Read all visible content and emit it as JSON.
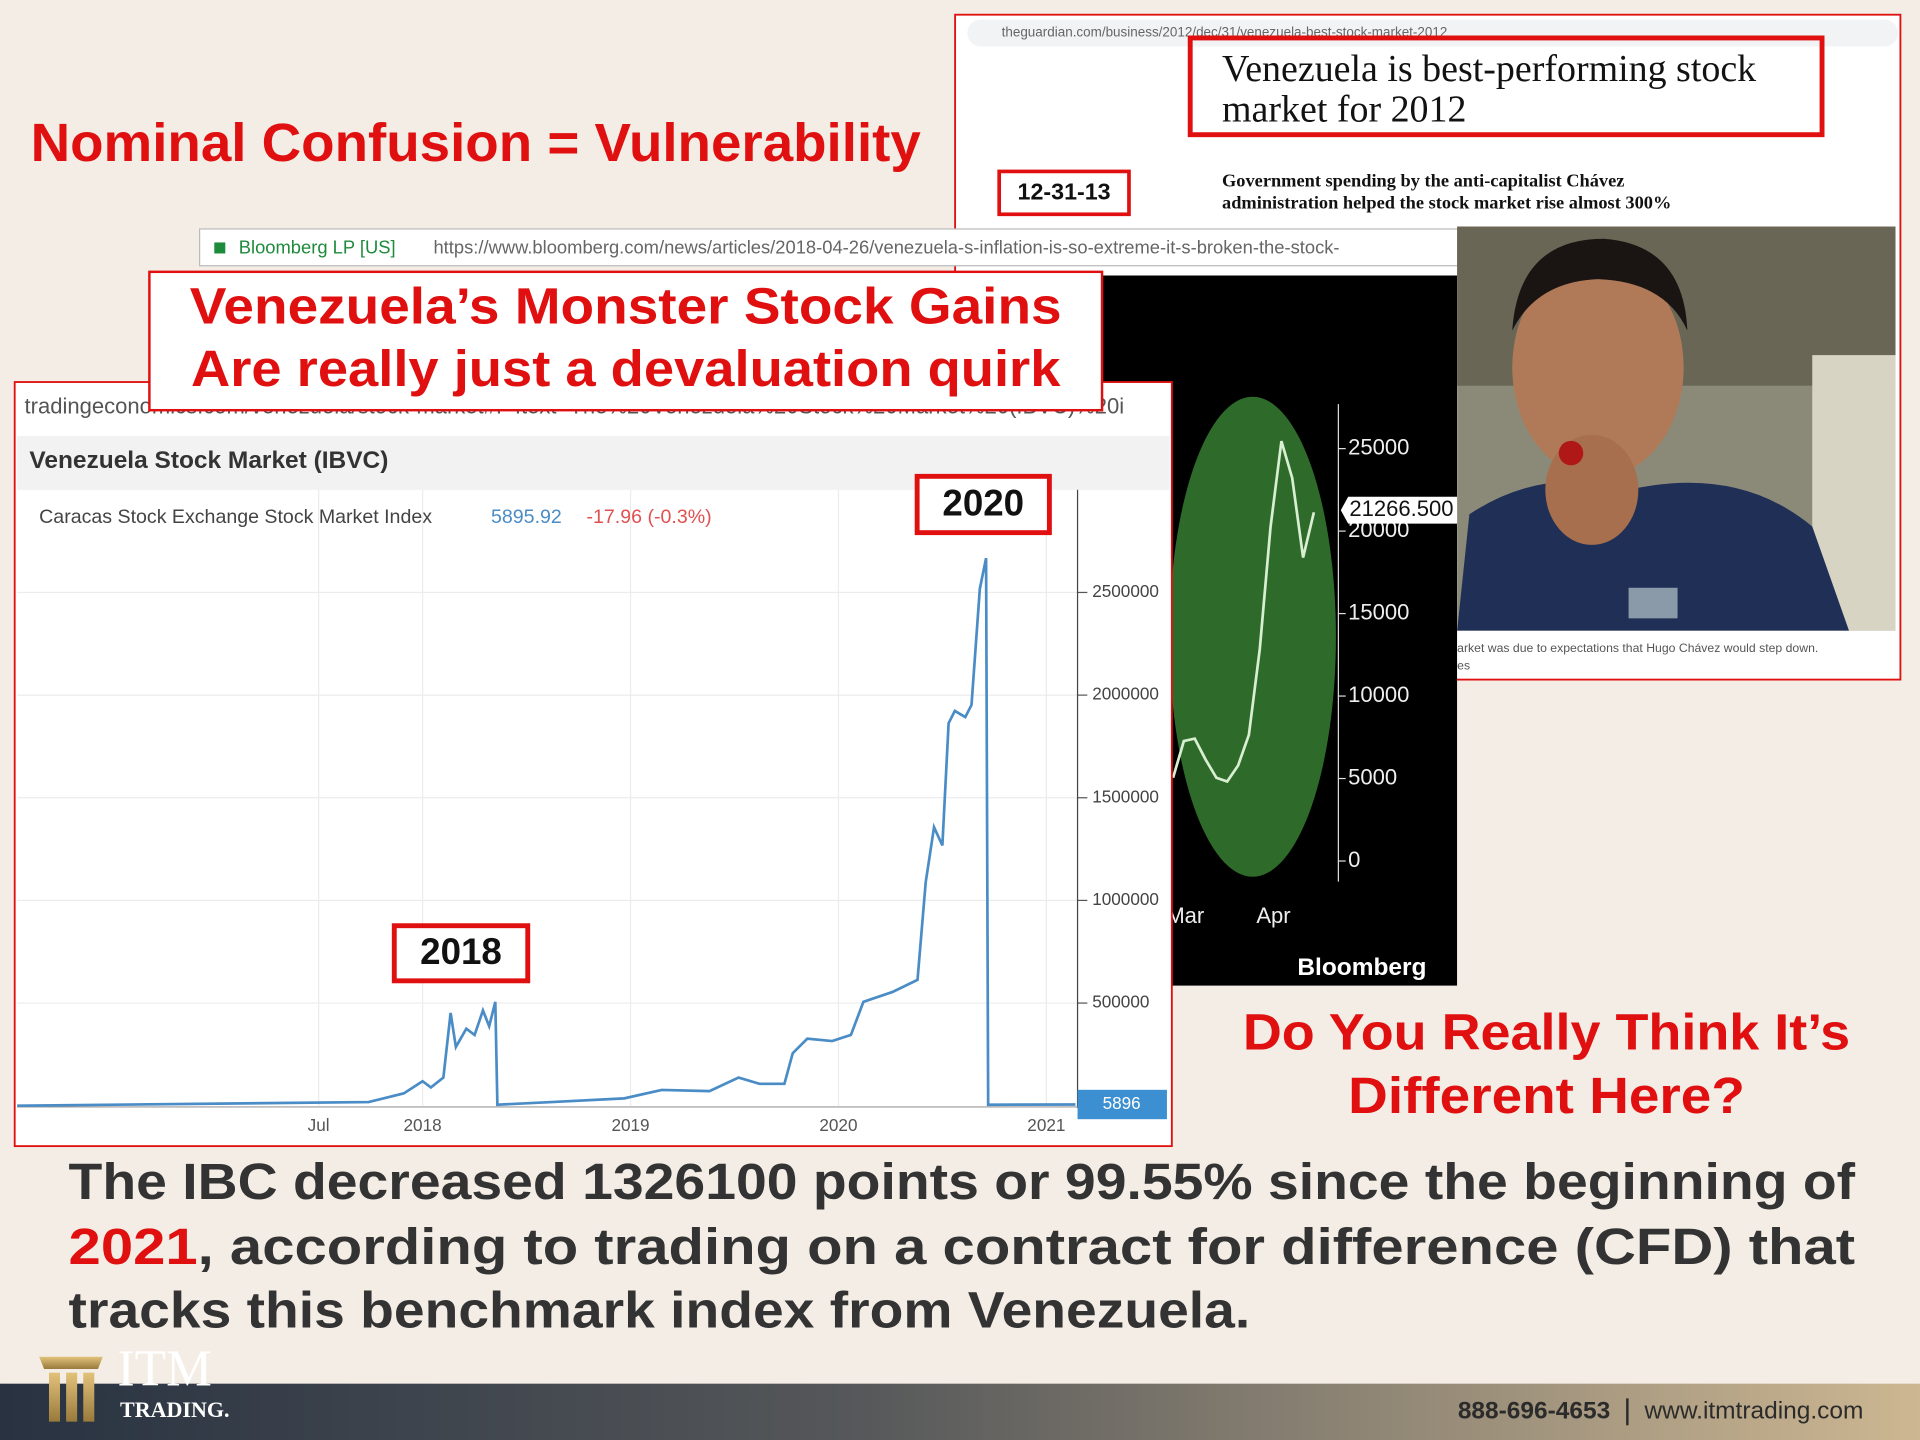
{
  "title": "Nominal Confusion = Vulnerability",
  "guardian": {
    "url": "theguardian.com/business/2012/dec/31/venezuela-best-stock-market-2012",
    "headline": [
      "Venezuela is best-performing stock",
      "market for 2012"
    ],
    "date_tag": "12-31-13",
    "standfirst": [
      "Government spending by the anti-capitalist Chávez",
      "administration helped the stock market rise almost 300%"
    ],
    "caption": [
      "arket was due to expectations that Hugo Chávez would step down.",
      "es"
    ]
  },
  "bloomberg": {
    "site": "Bloomberg LP [US]",
    "url": "https://www.bloomberg.com/news/articles/2018-04-26/venezuela-s-inflation-is-so-extreme-it-s-broken-the-stock-",
    "callout": [
      "Venezuela’s Monster Stock Gains",
      "Are really just a devaluation quirk"
    ]
  },
  "tradingeconomics": {
    "url": "tradingeconomics.com/venezuela/stock-market#:~:text=The%20Venezuela%20Stock%20Market%20(IBVC)%20i"
  },
  "chart_data": [
    {
      "type": "line",
      "title": "Venezuela Stock Market (IBVC)",
      "x": [
        2016.05,
        2017.74,
        2017.91,
        2018.0,
        2018.04,
        2018.1,
        2018.135,
        2018.16,
        2018.21,
        2018.25,
        2018.29,
        2018.32,
        2018.35,
        2018.36,
        2018.62,
        2018.97,
        2019.15,
        2019.38,
        2019.52,
        2019.62,
        2019.74,
        2019.78,
        2019.85,
        2019.97,
        2020.06,
        2020.12,
        2020.26,
        2020.38,
        2020.42,
        2020.46,
        2020.5,
        2020.53,
        2020.56,
        2020.61,
        2020.64,
        2020.68,
        2020.71,
        2020.72,
        2021.14
      ],
      "series": [
        {
          "name": "Caracas Stock Exchange Stock Market Index",
          "color": "#4a8cc6",
          "values": [
            0,
            18000,
            60000,
            119000,
            89000,
            137000,
            452000,
            286000,
            375000,
            345000,
            464000,
            387000,
            506000,
            5000,
            18000,
            36000,
            77000,
            71000,
            137000,
            107000,
            107000,
            256000,
            327000,
            315000,
            345000,
            506000,
            554000,
            613000,
            1089000,
            1357000,
            1268000,
            1863000,
            1923000,
            1893000,
            1952000,
            2518000,
            2667000,
            5000,
            5896
          ]
        }
      ],
      "last": 5895.92,
      "change": {
        "value": -17.96,
        "label": "-17.96 (-0.3%)"
      },
      "current": 5896,
      "annotations": [
        "2018",
        "2020"
      ],
      "xlim": [
        2016.05,
        2021.15
      ],
      "xticks": [
        {
          "value": 2017.5,
          "label": "Jul"
        },
        2018,
        2019,
        2020,
        2021
      ],
      "ylim": [
        0,
        3000000
      ],
      "yticks": [
        500000,
        1000000,
        1500000,
        2000000,
        2500000
      ],
      "grid": true
    },
    {
      "type": "line",
      "source": "Bloomberg",
      "color": "#d9efd2",
      "values": [
        5045,
        7270,
        7420,
        6160,
        5045,
        4820,
        5790,
        7640,
        12830,
        20250,
        25450,
        23220,
        18400,
        21140
      ],
      "xlabels": [
        "Mar",
        "Apr"
      ],
      "current": {
        "value": 21266.5,
        "label": "21266.500"
      },
      "ylim": [
        -1250,
        27700
      ],
      "yticks": [
        0,
        5000,
        10000,
        15000,
        20000,
        25000
      ]
    }
  ],
  "question": [
    "Do You Really Think It’s",
    "Different Here?"
  ],
  "paragraph": [
    "The IBC decreased 1326100 points or 99.55% since the beginning of",
    "2021",
    ", according to trading on a contract for difference (CFD) that",
    "tracks this benchmark index from Venezuela."
  ],
  "footer": {
    "logo": "ITM",
    "logo_sub": "TRADING.",
    "phone": "888-696-4653",
    "website": "www.itmtrading.com"
  }
}
